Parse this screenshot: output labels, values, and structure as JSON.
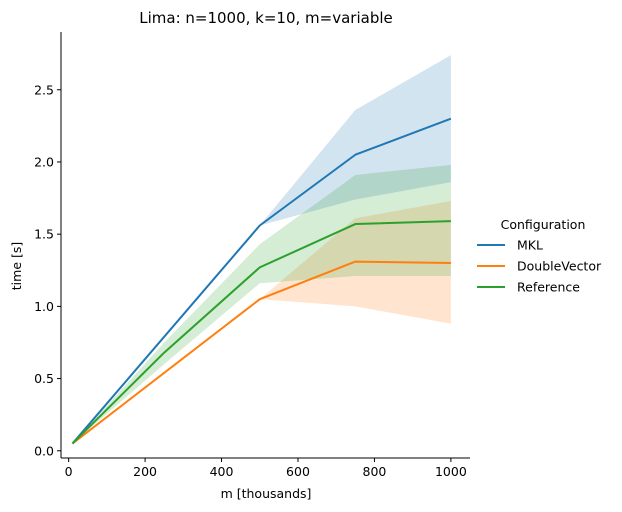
{
  "chart_data": {
    "type": "line",
    "title": "Lima: n=1000, k=10, m=variable",
    "xlabel": "m [thousands]",
    "ylabel": "time [s]",
    "xlim": [
      -20,
      1050
    ],
    "ylim": [
      -0.05,
      2.9
    ],
    "xticks": [
      0,
      200,
      400,
      600,
      800,
      1000
    ],
    "yticks": [
      0.0,
      0.5,
      1.0,
      1.5,
      2.0,
      2.5
    ],
    "xtick_labels": [
      "0",
      "200",
      "400",
      "600",
      "800",
      "1000"
    ],
    "ytick_labels": [
      "0.0",
      "0.5",
      "1.0",
      "1.5",
      "2.0",
      "2.5"
    ],
    "grid": false,
    "legend_title": "Configuration",
    "legend_position": "right",
    "series": [
      {
        "name": "MKL",
        "color": "#1f77b4",
        "x": [
          10,
          500,
          750,
          1000
        ],
        "values": [
          0.05,
          1.56,
          2.05,
          2.3
        ],
        "ci_lower": [
          0.05,
          1.56,
          1.74,
          1.86
        ],
        "ci_upper": [
          0.05,
          1.56,
          2.36,
          2.74
        ]
      },
      {
        "name": "DoubleVector",
        "color": "#ff7f0e",
        "x": [
          10,
          500,
          750,
          1000
        ],
        "values": [
          0.05,
          1.05,
          1.31,
          1.3
        ],
        "ci_lower": [
          0.05,
          1.05,
          1.0,
          0.88
        ],
        "ci_upper": [
          0.05,
          1.05,
          1.61,
          1.73
        ]
      },
      {
        "name": "Reference",
        "color": "#2ca02c",
        "x": [
          10,
          250,
          500,
          750,
          1000
        ],
        "values": [
          0.05,
          0.68,
          1.27,
          1.57,
          1.59
        ],
        "ci_lower": [
          0.05,
          0.6,
          1.16,
          1.21,
          1.21
        ],
        "ci_upper": [
          0.05,
          0.75,
          1.43,
          1.91,
          1.98
        ]
      }
    ]
  }
}
